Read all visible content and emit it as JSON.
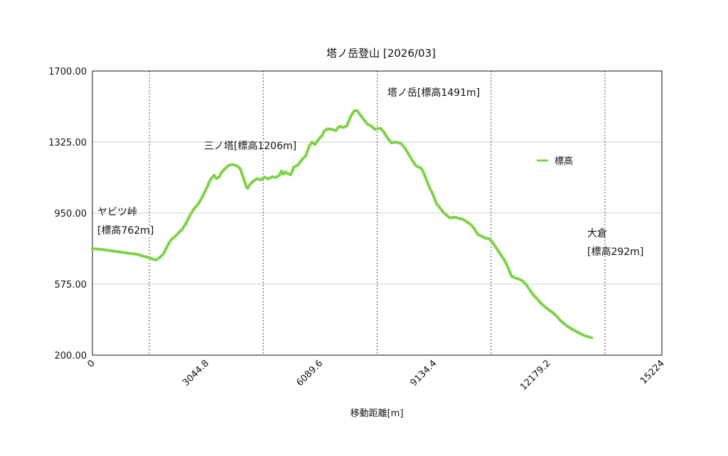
{
  "chart_data": {
    "type": "line",
    "title": "塔ノ岳登山 [2026/03]",
    "xlabel": "移動距離[m]",
    "ylabel": "",
    "xlim": [
      0,
      15224
    ],
    "ylim": [
      200,
      1700
    ],
    "x_ticks": [
      0,
      3044.8,
      6089.6,
      9134.4,
      12179.2,
      15224
    ],
    "x_tick_labels": [
      "0",
      "3044.8",
      "6089.6",
      "9134.4",
      "12179.2",
      "15224"
    ],
    "y_ticks": [
      200,
      575,
      950,
      1325,
      1700
    ],
    "y_tick_labels": [
      "200.00",
      "575.00",
      "950.00",
      "1325.00",
      "1700.00"
    ],
    "grid": true,
    "legend_position": "right",
    "series_color": "#7ed348",
    "series": [
      {
        "name": "標高",
        "points": [
          [
            0,
            762
          ],
          [
            300,
            757
          ],
          [
            600,
            748
          ],
          [
            900,
            740
          ],
          [
            1200,
            732
          ],
          [
            1400,
            720
          ],
          [
            1520,
            715
          ],
          [
            1600,
            708
          ],
          [
            1700,
            702
          ],
          [
            1800,
            716
          ],
          [
            1900,
            735
          ],
          [
            2000,
            775
          ],
          [
            2100,
            808
          ],
          [
            2200,
            825
          ],
          [
            2300,
            845
          ],
          [
            2400,
            865
          ],
          [
            2500,
            895
          ],
          [
            2600,
            935
          ],
          [
            2700,
            968
          ],
          [
            2850,
            1005
          ],
          [
            2950,
            1040
          ],
          [
            3050,
            1080
          ],
          [
            3150,
            1125
          ],
          [
            3250,
            1150
          ],
          [
            3320,
            1132
          ],
          [
            3400,
            1143
          ],
          [
            3450,
            1165
          ],
          [
            3550,
            1185
          ],
          [
            3650,
            1203
          ],
          [
            3750,
            1206
          ],
          [
            3850,
            1201
          ],
          [
            3950,
            1185
          ],
          [
            4030,
            1140
          ],
          [
            4110,
            1092
          ],
          [
            4150,
            1080
          ],
          [
            4200,
            1098
          ],
          [
            4300,
            1118
          ],
          [
            4400,
            1132
          ],
          [
            4500,
            1125
          ],
          [
            4600,
            1140
          ],
          [
            4700,
            1130
          ],
          [
            4800,
            1142
          ],
          [
            4900,
            1138
          ],
          [
            5000,
            1150
          ],
          [
            5050,
            1172
          ],
          [
            5100,
            1155
          ],
          [
            5150,
            1168
          ],
          [
            5200,
            1160
          ],
          [
            5300,
            1152
          ],
          [
            5380,
            1192
          ],
          [
            5500,
            1205
          ],
          [
            5600,
            1232
          ],
          [
            5700,
            1252
          ],
          [
            5800,
            1305
          ],
          [
            5870,
            1325
          ],
          [
            5950,
            1312
          ],
          [
            6050,
            1340
          ],
          [
            6150,
            1362
          ],
          [
            6200,
            1385
          ],
          [
            6300,
            1395
          ],
          [
            6400,
            1392
          ],
          [
            6500,
            1385
          ],
          [
            6600,
            1408
          ],
          [
            6700,
            1402
          ],
          [
            6800,
            1410
          ],
          [
            6900,
            1458
          ],
          [
            7000,
            1490
          ],
          [
            7080,
            1491
          ],
          [
            7150,
            1470
          ],
          [
            7250,
            1445
          ],
          [
            7350,
            1420
          ],
          [
            7450,
            1410
          ],
          [
            7550,
            1392
          ],
          [
            7700,
            1398
          ],
          [
            7800,
            1375
          ],
          [
            7900,
            1343
          ],
          [
            8000,
            1320
          ],
          [
            8100,
            1325
          ],
          [
            8250,
            1318
          ],
          [
            8350,
            1295
          ],
          [
            8450,
            1262
          ],
          [
            8550,
            1228
          ],
          [
            8650,
            1200
          ],
          [
            8800,
            1185
          ],
          [
            8900,
            1140
          ],
          [
            9000,
            1090
          ],
          [
            9100,
            1050
          ],
          [
            9200,
            1000
          ],
          [
            9300,
            975
          ],
          [
            9400,
            950
          ],
          [
            9550,
            925
          ],
          [
            9700,
            928
          ],
          [
            9800,
            922
          ],
          [
            9900,
            918
          ],
          [
            10000,
            905
          ],
          [
            10100,
            892
          ],
          [
            10200,
            870
          ],
          [
            10300,
            838
          ],
          [
            10400,
            828
          ],
          [
            10500,
            818
          ],
          [
            10600,
            815
          ],
          [
            10700,
            795
          ],
          [
            10800,
            765
          ],
          [
            10900,
            735
          ],
          [
            11000,
            706
          ],
          [
            11100,
            668
          ],
          [
            11200,
            618
          ],
          [
            11300,
            608
          ],
          [
            11400,
            602
          ],
          [
            11500,
            592
          ],
          [
            11600,
            572
          ],
          [
            11700,
            542
          ],
          [
            11800,
            515
          ],
          [
            11900,
            495
          ],
          [
            12000,
            472
          ],
          [
            12100,
            455
          ],
          [
            12200,
            440
          ],
          [
            12300,
            425
          ],
          [
            12400,
            408
          ],
          [
            12500,
            385
          ],
          [
            12600,
            368
          ],
          [
            12700,
            352
          ],
          [
            12800,
            340
          ],
          [
            12900,
            329
          ],
          [
            13000,
            318
          ],
          [
            13100,
            308
          ],
          [
            13200,
            300
          ],
          [
            13300,
            295
          ],
          [
            13350,
            292
          ]
        ]
      }
    ],
    "markers": [
      {
        "x": 1522,
        "label_lines": [
          "ヤビツ峠",
          "[標高762m]"
        ]
      },
      {
        "x": 4567,
        "label_lines": [
          "三ノ塔[標高1206m]"
        ]
      },
      {
        "x": 7612,
        "label_lines": [
          "塔ノ岳[標高1491m]"
        ]
      },
      {
        "x": 10657,
        "label_lines": []
      },
      {
        "x": 13702,
        "label_lines": [
          "大倉",
          "[標高292m]"
        ]
      }
    ]
  }
}
